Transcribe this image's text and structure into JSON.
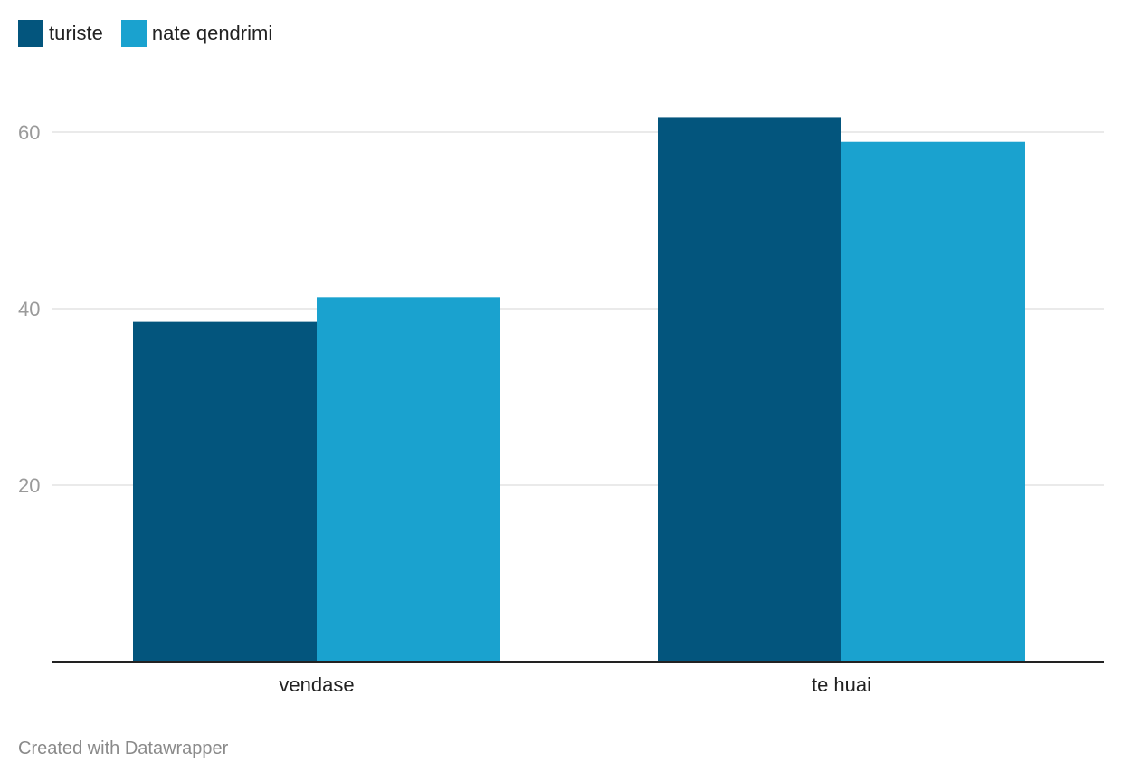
{
  "chart_data": {
    "type": "bar",
    "categories": [
      "vendase",
      "te huai"
    ],
    "series": [
      {
        "name": "turiste",
        "values": [
          38.5,
          61.7
        ],
        "color": "#03557d"
      },
      {
        "name": "nate qendrimi",
        "values": [
          41.3,
          58.9
        ],
        "color": "#1aa2cf"
      }
    ],
    "yticks": [
      20,
      40,
      60
    ],
    "ylim": [
      0,
      66
    ],
    "grid": true,
    "legend_position": "top-left"
  },
  "footer": {
    "credit": "Created with Datawrapper"
  }
}
